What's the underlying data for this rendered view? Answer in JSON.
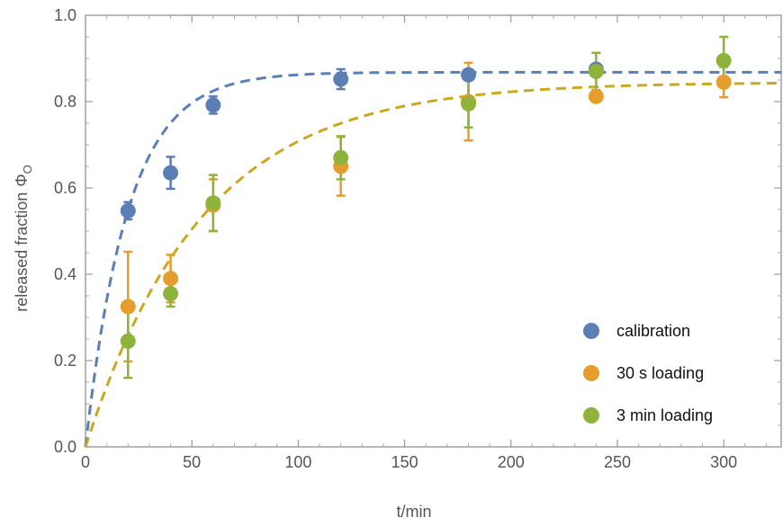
{
  "chart_data": {
    "type": "scatter",
    "xlabel": "t/min",
    "ylabel": "released fraction",
    "ylabel_symbol": "Φ",
    "ylabel_subscript": "O",
    "xlim": [
      0,
      327
    ],
    "ylim": [
      0,
      1.0
    ],
    "x_ticks": [
      0,
      50,
      100,
      150,
      200,
      250,
      300
    ],
    "y_ticks": [
      0.0,
      0.2,
      0.4,
      0.6,
      0.8,
      1.0
    ],
    "x_tick_labels": [
      "0",
      "50",
      "100",
      "150",
      "200",
      "250",
      "300"
    ],
    "y_tick_labels": [
      "0.0",
      "0.2",
      "0.4",
      "0.6",
      "0.8",
      "1.0"
    ],
    "grid": false,
    "legend_position": "bottom-right",
    "series": [
      {
        "name": "calibration",
        "color": "#5B7FB5",
        "x": [
          20,
          40,
          60,
          120,
          180,
          240
        ],
        "y": [
          0.547,
          0.635,
          0.792,
          0.852,
          0.862,
          0.875
        ],
        "err": [
          0.02,
          0.037,
          0.02,
          0.023,
          0.012,
          0.008
        ]
      },
      {
        "name": "30 s loading",
        "color": "#E59E2E",
        "x": [
          20,
          40,
          60,
          120,
          180,
          240,
          300
        ],
        "y": [
          0.325,
          0.39,
          0.56,
          0.65,
          0.8,
          0.812,
          0.845
        ],
        "err": [
          0.127,
          0.055,
          0.06,
          0.068,
          0.09,
          0.01,
          0.035
        ]
      },
      {
        "name": "3 min loading",
        "color": "#8DB33A",
        "x": [
          20,
          40,
          60,
          120,
          180,
          240,
          300
        ],
        "y": [
          0.245,
          0.355,
          0.565,
          0.67,
          0.795,
          0.87,
          0.895
        ],
        "err": [
          0.085,
          0.03,
          0.065,
          0.05,
          0.055,
          0.043,
          0.055
        ]
      }
    ],
    "fit_curves": [
      {
        "color": "#5B7FB5",
        "style": "dashed",
        "asymptote": 0.868,
        "tau": 20
      },
      {
        "color": "#C9A824",
        "style": "dashed",
        "asymptote": 0.845,
        "tau": 55
      }
    ]
  }
}
